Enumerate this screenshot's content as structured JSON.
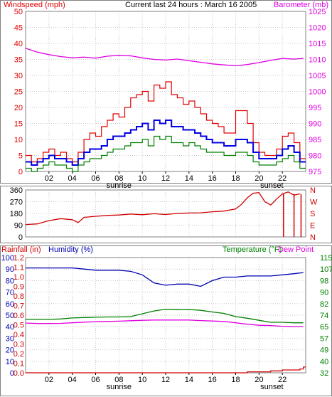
{
  "header": {
    "title": "Current last 24 hours : March 16 2005"
  },
  "colors": {
    "windspeed": "#e00000",
    "gust": "#e00000",
    "average": "#0000e0",
    "low": "#008000",
    "barometer": "#e000e0",
    "direction": "#d00000",
    "rainfall": "#d00000",
    "humidity": "#0000b0",
    "temperature": "#008000",
    "dewpoint": "#e000e0",
    "grid": "#c8c8c8"
  },
  "chart_data": [
    {
      "type": "line",
      "title": "",
      "ylabel_left": "Windspeed (mph)",
      "ylabel_right": "Barometer (mb)",
      "ylim": [
        0,
        50
      ],
      "ylim_right": [
        975,
        1025
      ],
      "y_ticks": [
        "0",
        "5",
        "10",
        "15",
        "20",
        "25",
        "30",
        "35",
        "40",
        "45",
        "50"
      ],
      "y_ticks_right": [
        "975",
        "980",
        "985",
        "990",
        "995",
        "1000",
        "1005",
        "1010",
        "1015",
        "1020",
        "1025"
      ],
      "x_ticks": [
        "02",
        "04",
        "06",
        "08",
        "10",
        "12",
        "14",
        "16",
        "18",
        "20",
        "22"
      ],
      "x_annotations": [
        {
          "hour": 8.0,
          "label": "sunrise"
        },
        {
          "hour": 21.1,
          "label": "sunset"
        }
      ],
      "series": [
        {
          "axis": "left",
          "x": [
            0,
            0.5,
            1,
            1.5,
            2,
            2.5,
            3,
            3.5,
            4,
            4.5,
            5,
            5.5,
            6,
            6.5,
            7,
            7.5,
            8,
            8.5,
            9,
            9.5,
            10,
            10.5,
            11,
            11.5,
            12,
            12.5,
            13,
            13.5,
            14,
            14.5,
            15,
            15.5,
            16,
            16.5,
            17,
            17.5,
            18,
            18.5,
            19,
            19.5,
            20,
            20.5,
            21,
            21.5,
            22,
            22.5,
            23,
            23.5
          ],
          "values": [
            5,
            3,
            4,
            6,
            7,
            5,
            6,
            4,
            3,
            6,
            10,
            12,
            11,
            14,
            16,
            18,
            17,
            20,
            23,
            24,
            25,
            22,
            27,
            26,
            28,
            24,
            23,
            21,
            22,
            20,
            18,
            16,
            15,
            14,
            12,
            12,
            19,
            19,
            15,
            9,
            6,
            5,
            5,
            7,
            11,
            12,
            9,
            4
          ]
        },
        {
          "axis": "left",
          "x": [
            0,
            0.5,
            1,
            1.5,
            2,
            2.5,
            3,
            3.5,
            4,
            4.5,
            5,
            5.5,
            6,
            6.5,
            7,
            7.5,
            8,
            8.5,
            9,
            9.5,
            10,
            10.5,
            11,
            11.5,
            12,
            12.5,
            13,
            13.5,
            14,
            14.5,
            15,
            15.5,
            16,
            16.5,
            17,
            17.5,
            18,
            18.5,
            19,
            19.5,
            20,
            20.5,
            21,
            21.5,
            22,
            22.5,
            23,
            23.5
          ],
          "values": [
            3,
            2,
            3,
            4,
            5,
            4,
            4,
            3,
            2,
            4,
            6,
            7,
            7,
            8,
            10,
            11,
            11,
            12,
            13,
            14,
            15,
            13,
            16,
            15,
            16,
            14,
            14,
            13,
            13,
            12,
            11,
            10,
            9,
            9,
            8,
            8,
            10,
            10,
            9,
            6,
            4,
            4,
            4,
            5,
            7,
            8,
            6,
            3
          ]
        },
        {
          "axis": "left",
          "x": [
            0,
            0.5,
            1,
            1.5,
            2,
            2.5,
            3,
            3.5,
            4,
            4.5,
            5,
            5.5,
            6,
            6.5,
            7,
            7.5,
            8,
            8.5,
            9,
            9.5,
            10,
            10.5,
            11,
            11.5,
            12,
            12.5,
            13,
            13.5,
            14,
            14.5,
            15,
            15.5,
            16,
            16.5,
            17,
            17.5,
            18,
            18.5,
            19,
            19.5,
            20,
            20.5,
            21,
            21.5,
            22,
            22.5,
            23,
            23.5
          ],
          "values": [
            1,
            0,
            1,
            2,
            3,
            2,
            2,
            1,
            0,
            2,
            3,
            4,
            4,
            5,
            6,
            7,
            7,
            8,
            9,
            9,
            10,
            8,
            11,
            10,
            11,
            9,
            9,
            8,
            9,
            8,
            7,
            6,
            6,
            6,
            5,
            5,
            6,
            6,
            5,
            3,
            2,
            2,
            2,
            3,
            4,
            5,
            3,
            1
          ]
        },
        {
          "axis": "right",
          "x": [
            0,
            1,
            2,
            3,
            4,
            5,
            6,
            7,
            8,
            9,
            10,
            11,
            12,
            13,
            14,
            15,
            16,
            17,
            18,
            19,
            20,
            21,
            22,
            23,
            23.8
          ],
          "values": [
            1013.5,
            1012.3,
            1011.5,
            1010.9,
            1010.5,
            1010.7,
            1010.4,
            1011.0,
            1011.3,
            1011.1,
            1010.5,
            1010.0,
            1009.8,
            1010.1,
            1009.6,
            1009.1,
            1008.6,
            1008.3,
            1008.0,
            1008.4,
            1009.0,
            1009.7,
            1010.3,
            1010.1,
            1010.3
          ]
        }
      ]
    },
    {
      "type": "line",
      "title": "",
      "ylim": [
        0,
        360
      ],
      "y_ticks": [
        "0",
        "90",
        "180",
        "270",
        "360"
      ],
      "y_ticks_right": [
        "N",
        "E",
        "S",
        "W",
        "N"
      ],
      "x_ticks": [],
      "series": [
        {
          "axis": "left",
          "x": [
            0,
            1,
            2,
            3,
            4,
            4.5,
            5,
            6,
            7,
            8,
            9,
            10,
            11,
            12,
            13,
            14,
            15,
            16,
            17,
            18,
            18.5,
            19,
            19.5,
            20,
            20.5,
            21,
            21.5,
            22,
            22.5,
            23,
            23.5
          ],
          "values": [
            95,
            100,
            125,
            140,
            132,
            110,
            150,
            158,
            165,
            168,
            175,
            170,
            178,
            172,
            180,
            183,
            185,
            193,
            198,
            215,
            250,
            300,
            335,
            340,
            270,
            245,
            290,
            330,
            345,
            320,
            330
          ]
        }
      ]
    },
    {
      "type": "line",
      "title": "",
      "ylabel_left": "Rainfall (in)",
      "ylabel_left2": "Humidity (%)",
      "ylabel_right": "Temperature (°F)",
      "ylabel_right2": "Dew Point",
      "ylim": [
        0,
        100
      ],
      "y_ticks": [
        "0",
        "10",
        "20",
        "30",
        "40",
        "50",
        "60",
        "70",
        "80",
        "90",
        "100"
      ],
      "y_ticks_rain": [
        "0.0",
        "0.1",
        "0.2",
        "0.3",
        "0.4",
        "0.5",
        "0.6",
        "0.7",
        "0.8",
        "0.9",
        "1.0",
        "1.1",
        "1.2"
      ],
      "y_ticks_right": [
        "32",
        "40",
        "49",
        "57",
        "65",
        "74",
        "82",
        "90",
        "98",
        "107",
        "115"
      ],
      "x_ticks": [
        "02",
        "04",
        "06",
        "08",
        "10",
        "12",
        "14",
        "16",
        "18",
        "20",
        "22"
      ],
      "x_annotations": [
        {
          "hour": 8.0,
          "label": "sunrise"
        },
        {
          "hour": 21.1,
          "label": "sunset"
        }
      ],
      "series": [
        {
          "axis": "rain",
          "x": [
            0,
            18,
            19,
            20,
            21,
            22,
            23,
            23.5,
            23.8
          ],
          "values": [
            0.0,
            0.0,
            0.01,
            0.01,
            0.02,
            0.03,
            0.03,
            0.04,
            0.06
          ]
        },
        {
          "axis": "left",
          "x": [
            0,
            1,
            2,
            3,
            4,
            5,
            6,
            7,
            8,
            9,
            10,
            11,
            12,
            13,
            14,
            15,
            16,
            17,
            18,
            19,
            20,
            21,
            22,
            23,
            23.8
          ],
          "values": [
            91,
            91,
            91,
            91,
            91,
            90,
            89,
            89,
            89,
            88,
            85,
            78,
            76,
            77,
            77,
            75,
            80,
            83,
            83,
            84,
            84,
            84,
            85,
            86,
            87
          ]
        },
        {
          "axis": "right",
          "x": [
            0,
            1,
            2,
            3,
            4,
            5,
            6,
            7,
            8,
            9,
            10,
            11,
            12,
            13,
            14,
            15,
            16,
            17,
            18,
            19,
            20,
            21,
            22,
            23,
            23.8
          ],
          "values": [
            70.5,
            70.5,
            70.5,
            70.8,
            71.5,
            71.8,
            72.0,
            72.2,
            72.2,
            72.5,
            74.5,
            76.5,
            77.8,
            77.5,
            77.6,
            77.0,
            75.8,
            74.8,
            72.5,
            71.3,
            69.8,
            68.4,
            68.4,
            68.0,
            68.0
          ]
        },
        {
          "axis": "right",
          "x": [
            0,
            1,
            2,
            3,
            4,
            5,
            6,
            7,
            8,
            9,
            10,
            11,
            12,
            13,
            14,
            15,
            16,
            17,
            18,
            19,
            20,
            21,
            22,
            23,
            23.8
          ],
          "values": [
            67.8,
            67.5,
            67.5,
            67.6,
            68.0,
            68.5,
            68.8,
            69.0,
            69.2,
            69.5,
            69.8,
            70.0,
            70.0,
            70.0,
            70.0,
            69.6,
            69.3,
            69.0,
            68.0,
            67.0,
            66.2,
            66.0,
            65.5,
            65.3,
            65.3
          ]
        }
      ]
    }
  ]
}
